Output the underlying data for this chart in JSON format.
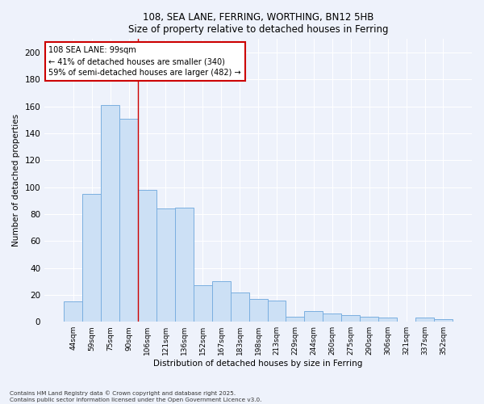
{
  "title": "108, SEA LANE, FERRING, WORTHING, BN12 5HB",
  "subtitle": "Size of property relative to detached houses in Ferring",
  "xlabel": "Distribution of detached houses by size in Ferring",
  "ylabel": "Number of detached properties",
  "categories": [
    "44sqm",
    "59sqm",
    "75sqm",
    "90sqm",
    "106sqm",
    "121sqm",
    "136sqm",
    "152sqm",
    "167sqm",
    "183sqm",
    "198sqm",
    "213sqm",
    "229sqm",
    "244sqm",
    "260sqm",
    "275sqm",
    "290sqm",
    "306sqm",
    "321sqm",
    "337sqm",
    "352sqm"
  ],
  "values": [
    15,
    95,
    161,
    151,
    98,
    84,
    85,
    27,
    30,
    22,
    17,
    16,
    4,
    8,
    6,
    5,
    4,
    3,
    0,
    3,
    2
  ],
  "bar_color": "#cce0f5",
  "bar_edge_color": "#7aafe0",
  "background_color": "#eef2fb",
  "grid_color": "#ffffff",
  "annotation_text_line1": "108 SEA LANE: 99sqm",
  "annotation_text_line2": "← 41% of detached houses are smaller (340)",
  "annotation_text_line3": "59% of semi-detached houses are larger (482) →",
  "annotation_box_facecolor": "#ffffff",
  "annotation_box_edgecolor": "#cc0000",
  "vline_color": "#cc0000",
  "vline_x": 3.5,
  "ylim": [
    0,
    210
  ],
  "yticks": [
    0,
    20,
    40,
    60,
    80,
    100,
    120,
    140,
    160,
    180,
    200
  ],
  "footnote_line1": "Contains HM Land Registry data © Crown copyright and database right 2025.",
  "footnote_line2": "Contains public sector information licensed under the Open Government Licence v3.0."
}
